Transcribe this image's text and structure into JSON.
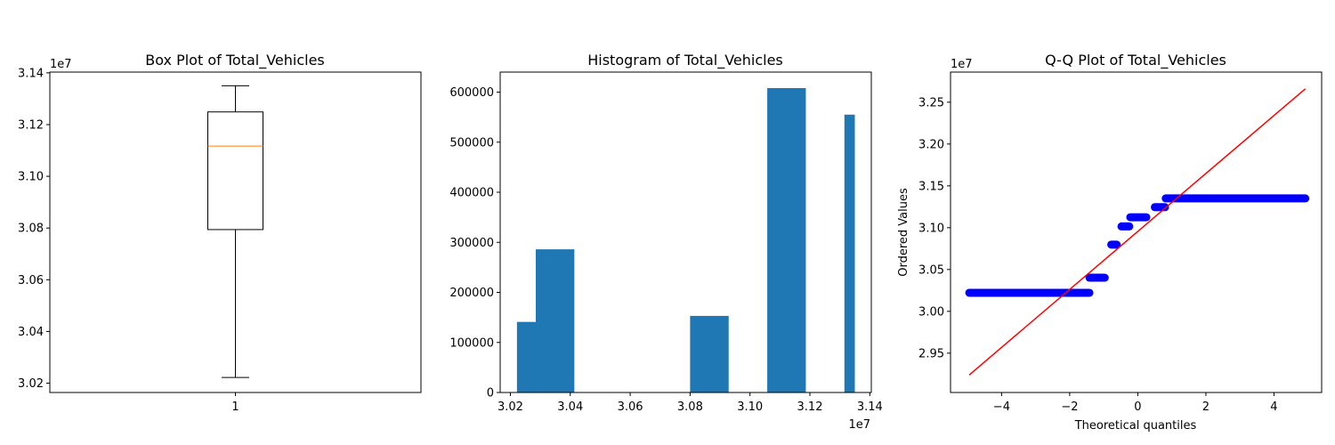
{
  "chart_data": [
    {
      "type": "box",
      "title": "Box Plot of Total_Vehicles",
      "xlabel": "",
      "ylabel": "",
      "x_tick_labels": [
        "1"
      ],
      "y_offset_label": "1e7",
      "ylim": [
        30164000,
        31403000
      ],
      "y_ticks": [
        30200000,
        30400000,
        30600000,
        30800000,
        31000000,
        31200000,
        31400000
      ],
      "y_tick_labels": [
        "3.02",
        "3.04",
        "3.06",
        "3.08",
        "3.10",
        "3.12",
        "3.14"
      ],
      "box": {
        "whisker_low": 30222000,
        "q1": 30794000,
        "median": 31117000,
        "q3": 31249000,
        "whisker_high": 31350000
      },
      "colors": {
        "box": "#000000",
        "median": "#ff7f0e"
      }
    },
    {
      "type": "bar",
      "title": "Histogram of Total_Vehicles",
      "xlabel": "",
      "ylabel": "",
      "x_offset_label": "1e7",
      "xlim": [
        30166000,
        31405000
      ],
      "ylim": [
        0,
        640000
      ],
      "x_ticks": [
        30200000,
        30400000,
        30600000,
        30800000,
        31000000,
        31200000,
        31400000
      ],
      "x_tick_labels": [
        "3.02",
        "3.04",
        "3.06",
        "3.08",
        "3.10",
        "3.12",
        "3.14"
      ],
      "y_ticks": [
        0,
        100000,
        200000,
        300000,
        400000,
        500000,
        600000
      ],
      "y_tick_labels": [
        "0",
        "100000",
        "200000",
        "300000",
        "400000",
        "500000",
        "600000"
      ],
      "bins": [
        {
          "x0": 30222000,
          "x1": 30284800,
          "count": 141000
        },
        {
          "x0": 30284800,
          "x1": 30413600,
          "count": 286000
        },
        {
          "x0": 30413600,
          "x1": 30542400,
          "count": 0
        },
        {
          "x0": 30542400,
          "x1": 30671200,
          "count": 0
        },
        {
          "x0": 30671200,
          "x1": 30800000,
          "count": 0
        },
        {
          "x0": 30800000,
          "x1": 30928800,
          "count": 153000
        },
        {
          "x0": 30928800,
          "x1": 31057600,
          "count": 0
        },
        {
          "x0": 31057600,
          "x1": 31186400,
          "count": 608000
        },
        {
          "x0": 31186400,
          "x1": 31315200,
          "count": 0
        },
        {
          "x0": 31315200,
          "x1": 31350000,
          "count": 555000
        }
      ],
      "colors": {
        "bar": "#1f77b4"
      }
    },
    {
      "type": "scatter",
      "title": "Q-Q Plot of Total_Vehicles",
      "xlabel": "Theoretical quantiles",
      "ylabel": "Ordered Values",
      "y_offset_label": "1e7",
      "xlim": [
        -5.5,
        5.4
      ],
      "ylim": [
        29030000,
        32860000
      ],
      "x_ticks": [
        -4,
        -2,
        0,
        2,
        4
      ],
      "x_tick_labels": [
        "−4",
        "−2",
        "0",
        "2",
        "4"
      ],
      "y_ticks": [
        29500000,
        30000000,
        30500000,
        31000000,
        31500000,
        32000000,
        32500000
      ],
      "y_tick_labels": [
        "2.95",
        "3.00",
        "3.05",
        "3.10",
        "3.15",
        "3.20",
        "3.25"
      ],
      "steps": [
        {
          "x_start": -4.95,
          "x_end": -1.42,
          "y": 30222000
        },
        {
          "x_start": -1.42,
          "x_end": -0.97,
          "y": 30402000
        },
        {
          "x_start": -0.78,
          "x_end": -0.62,
          "y": 30798000
        },
        {
          "x_start": -0.48,
          "x_end": -0.25,
          "y": 31015000
        },
        {
          "x_start": -0.22,
          "x_end": 0.25,
          "y": 31125000
        },
        {
          "x_start": 0.5,
          "x_end": 0.8,
          "y": 31245000
        },
        {
          "x_start": 0.82,
          "x_end": 4.92,
          "y": 31350000
        }
      ],
      "fit_line": {
        "x": [
          -4.95,
          4.92
        ],
        "y": [
          29240000,
          32660000
        ]
      },
      "colors": {
        "points": "#0000ff",
        "line": "#ff0000"
      }
    }
  ]
}
